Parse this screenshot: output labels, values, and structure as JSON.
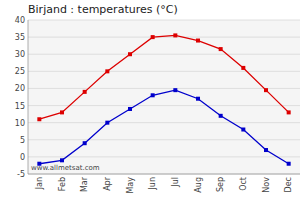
{
  "chart_data": {
    "type": "line",
    "title": "Birjand : temperatures (°C)",
    "categories": [
      "Jan",
      "Feb",
      "Mar",
      "Apr",
      "May",
      "Jun",
      "Jul",
      "Aug",
      "Sep",
      "Oct",
      "Nov",
      "Dec"
    ],
    "series": [
      {
        "color": "#dd0000",
        "marker": "square",
        "line_style": "solid",
        "values": [
          11,
          13,
          19,
          25,
          30,
          35,
          35.5,
          34,
          31.5,
          26,
          19.5,
          13
        ]
      },
      {
        "color": "#0000cc",
        "marker": "square",
        "line_style": "solid",
        "values": [
          -2,
          -1,
          4,
          10,
          14,
          18,
          19.5,
          17,
          12,
          8,
          2,
          -2
        ]
      }
    ],
    "ylim": [
      -5,
      40
    ],
    "yticks": [
      -5,
      0,
      5,
      10,
      15,
      20,
      25,
      30,
      35,
      40
    ],
    "grid": true,
    "annotation": "www.allmetsat.com"
  }
}
